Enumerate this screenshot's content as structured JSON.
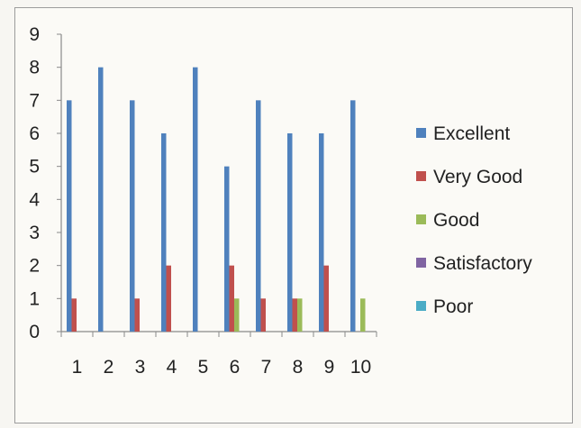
{
  "chart_data": {
    "type": "bar",
    "categories": [
      "1",
      "2",
      "3",
      "4",
      "5",
      "6",
      "7",
      "8",
      "9",
      "10"
    ],
    "series": [
      {
        "name": "Excellent",
        "color": "#4f81bd",
        "values": [
          7,
          8,
          7,
          6,
          8,
          5,
          7,
          6,
          6,
          7
        ]
      },
      {
        "name": "Very Good",
        "color": "#c0504d",
        "values": [
          1,
          0,
          1,
          2,
          0,
          2,
          1,
          1,
          2,
          0
        ]
      },
      {
        "name": "Good",
        "color": "#9bbb59",
        "values": [
          0,
          0,
          0,
          0,
          0,
          1,
          0,
          1,
          0,
          1
        ]
      },
      {
        "name": "Satisfactory",
        "color": "#8064a2",
        "values": [
          0,
          0,
          0,
          0,
          0,
          0,
          0,
          0,
          0,
          0
        ]
      },
      {
        "name": "Poor",
        "color": "#4bacc6",
        "values": [
          0,
          0,
          0,
          0,
          0,
          0,
          0,
          0,
          0,
          0
        ]
      }
    ],
    "yticks": [
      "0",
      "1",
      "2",
      "3",
      "4",
      "5",
      "6",
      "7",
      "8",
      "9"
    ],
    "ylim": [
      0,
      9
    ],
    "legend_position": "right",
    "grid": false
  }
}
